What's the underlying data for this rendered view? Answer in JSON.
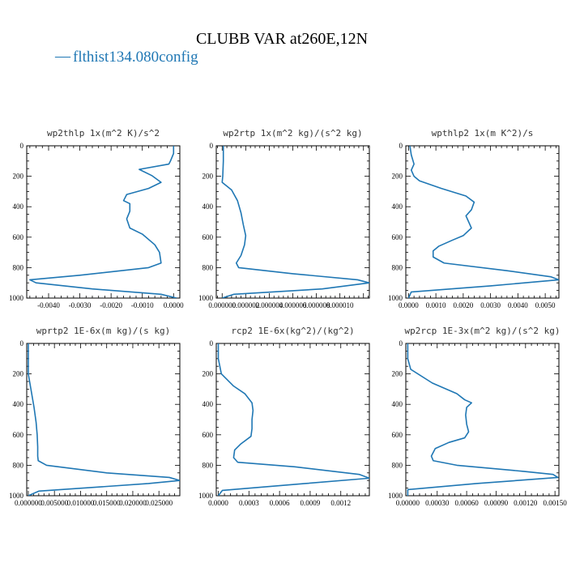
{
  "figure": {
    "title": "CLUBB VAR at260E,12N",
    "legend": {
      "label": "flthist134.080config",
      "symbol": "—"
    },
    "line_color": "#1f77b4"
  },
  "chart_data": [
    {
      "type": "line",
      "title": "wp2thlp  1x(m^2 K)/s^2",
      "xlim": [
        -0.0047,
        0.0002
      ],
      "ylim": [
        1000,
        0
      ],
      "xticks": [
        "-0.0040",
        "-0.0030",
        "-0.0020",
        "-0.0010",
        "0.0000"
      ],
      "xtick_values": [
        -0.004,
        -0.003,
        -0.002,
        -0.001,
        0.0
      ],
      "yticks": [
        "0",
        "200",
        "400",
        "600",
        "800",
        "1000"
      ],
      "series": [
        {
          "x": [
            0.0,
            0.0,
            -0.0001,
            -0.00015,
            -0.0011,
            -0.0007,
            -0.0004,
            -0.0008,
            -0.0015,
            -0.0016,
            -0.0014,
            -0.0014,
            -0.0015,
            -0.0014,
            -0.001,
            -0.0006,
            -0.00045,
            -0.0004,
            -0.0008,
            -0.003,
            -0.0046,
            -0.0044,
            -0.0026,
            -0.0004,
            0.0001
          ],
          "y": [
            0,
            50,
            100,
            120,
            155,
            195,
            240,
            280,
            320,
            360,
            380,
            430,
            480,
            540,
            580,
            650,
            700,
            770,
            800,
            850,
            880,
            900,
            940,
            975,
            1000
          ]
        }
      ]
    },
    {
      "type": "line",
      "title": "wp2rtp  1x(m^2 kg)/(s^2 kg)",
      "xlim": [
        -5e-07,
        1.25e-05
      ],
      "ylim": [
        1000,
        0
      ],
      "xticks": [
        "0.000000",
        "0.000002",
        "0.000004",
        "0.000006",
        "0.000008",
        "0.000010"
      ],
      "xtick_values": [
        0.0,
        2e-06,
        4e-06,
        6e-06,
        8e-06,
        1e-05
      ],
      "yticks": [
        "0",
        "200",
        "400",
        "600",
        "800",
        "1000"
      ],
      "series": [
        {
          "x": [
            1e-07,
            1e-07,
            5e-08,
            0.0,
            8e-07,
            1.3e-06,
            1.6e-06,
            1.8e-06,
            2e-06,
            1.9e-06,
            1.6e-06,
            1.2e-06,
            1.4e-06,
            6e-06,
            1.15e-05,
            1.25e-05,
            8.5e-06,
            1e-06,
            0.0
          ],
          "y": [
            0,
            100,
            200,
            240,
            290,
            360,
            440,
            520,
            590,
            650,
            720,
            770,
            800,
            840,
            880,
            900,
            940,
            975,
            1000
          ]
        }
      ]
    },
    {
      "type": "line",
      "title": "wpthlp2  1x(m K^2)/s",
      "xlim": [
        -0.0001,
        0.0055
      ],
      "ylim": [
        1000,
        0
      ],
      "xticks": [
        "0.0000",
        "0.0010",
        "0.0020",
        "0.0030",
        "0.0040",
        "0.0050"
      ],
      "xtick_values": [
        0.0,
        0.001,
        0.002,
        0.003,
        0.004,
        0.005
      ],
      "yticks": [
        "0",
        "200",
        "400",
        "600",
        "800",
        "1000"
      ],
      "series": [
        {
          "x": [
            5e-05,
            0.0001,
            0.0002,
            0.0001,
            0.0002,
            0.0004,
            0.0012,
            0.0021,
            0.0024,
            0.0023,
            0.0021,
            0.0022,
            0.0023,
            0.002,
            0.0016,
            0.0011,
            0.0009,
            0.0009,
            0.0013,
            0.0036,
            0.0052,
            0.0055,
            0.003,
            0.0001,
            0.0
          ],
          "y": [
            0,
            60,
            120,
            160,
            200,
            230,
            280,
            330,
            370,
            420,
            460,
            500,
            540,
            590,
            620,
            660,
            690,
            730,
            770,
            820,
            860,
            880,
            920,
            960,
            1000
          ]
        }
      ]
    },
    {
      "type": "line",
      "title": "wprtp2  1E-6x(m kg)/(s kg)",
      "xlim": [
        -0.0003,
        0.029
      ],
      "ylim": [
        1000,
        0
      ],
      "xticks": [
        "0.000000",
        "0.005000",
        "0.010000",
        "0.015000",
        "0.020000",
        "0.025000"
      ],
      "xtick_values": [
        0.0,
        0.005,
        0.01,
        0.015,
        0.02,
        0.025
      ],
      "yticks": [
        "0",
        "200",
        "400",
        "600",
        "800",
        "1000"
      ],
      "series": [
        {
          "x": [
            0.0,
            0.0,
            0.0005,
            0.0011,
            0.0015,
            0.0017,
            0.0018,
            0.0018,
            0.0019,
            0.0035,
            0.015,
            0.027,
            0.029,
            0.023,
            0.002,
            0.0
          ],
          "y": [
            0,
            200,
            300,
            420,
            520,
            600,
            680,
            740,
            770,
            800,
            850,
            880,
            900,
            920,
            970,
            1000
          ]
        }
      ]
    },
    {
      "type": "line",
      "title": "rcp2  1E-6x(kg^2)/(kg^2)",
      "xlim": [
        -2e-05,
        0.00148
      ],
      "ylim": [
        1000,
        0
      ],
      "xticks": [
        "0.0000",
        "0.0003",
        "0.0006",
        "0.0009",
        "0.0012"
      ],
      "xtick_values": [
        0.0,
        0.0003,
        0.0006,
        0.0009,
        0.0012
      ],
      "yticks": [
        "0",
        "200",
        "400",
        "600",
        "800",
        "1000"
      ],
      "series": [
        {
          "x": [
            0.0,
            0.0,
            3e-05,
            0.00015,
            0.00026,
            0.00033,
            0.00034,
            0.00033,
            0.00033,
            0.00032,
            0.00022,
            0.00016,
            0.00015,
            0.00019,
            0.00075,
            0.00138,
            0.00148,
            0.00085,
            4e-05,
            0.0
          ],
          "y": [
            0,
            100,
            200,
            280,
            330,
            390,
            440,
            500,
            560,
            610,
            660,
            700,
            750,
            780,
            810,
            860,
            885,
            920,
            965,
            1000
          ]
        }
      ]
    },
    {
      "type": "line",
      "title": "wp2rcp  1E-3x(m^2 kg)/(s^2 kg)",
      "xlim": [
        -2e-05,
        0.00154
      ],
      "ylim": [
        1000,
        0
      ],
      "xticks": [
        "0.00000",
        "0.00030",
        "0.00060",
        "0.00090",
        "0.00120",
        "0.00150"
      ],
      "xtick_values": [
        0.0,
        0.0003,
        0.0006,
        0.0009,
        0.0012,
        0.0015
      ],
      "yticks": [
        "0",
        "200",
        "400",
        "600",
        "800",
        "1000"
      ],
      "series": [
        {
          "x": [
            0.0,
            0.0,
            3e-05,
            0.00025,
            0.0005,
            0.00058,
            0.00065,
            0.0006,
            0.00059,
            0.0006,
            0.00062,
            0.00058,
            0.00042,
            0.00028,
            0.00024,
            0.00026,
            0.0005,
            0.00118,
            0.00148,
            0.00153,
            0.0007,
            0.0,
            0.0
          ],
          "y": [
            0,
            100,
            170,
            260,
            330,
            370,
            390,
            420,
            470,
            530,
            580,
            620,
            650,
            690,
            740,
            770,
            800,
            840,
            860,
            880,
            920,
            960,
            1000
          ]
        }
      ]
    }
  ]
}
